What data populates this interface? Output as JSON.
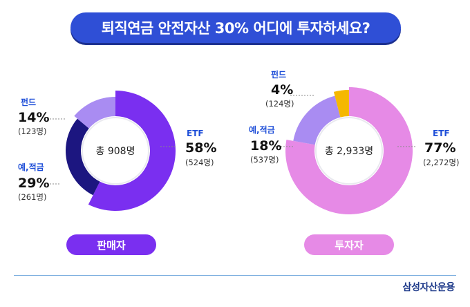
{
  "title": "퇴직연금 안전자산 30% 어디에 투자하세요?",
  "colors": {
    "title_bg": "#2f4fd6",
    "etf_sellers": "#7a2ff0",
    "deposit_sellers": "#1c1680",
    "fund_sellers": "#a98cf2",
    "etf_investors": "#e68ae6",
    "deposit_investors": "#a98cf2",
    "fund_investors": "#f5b800",
    "label_blue": "#1e4ed8"
  },
  "chart_data": [
    {
      "type": "pie",
      "donut": true,
      "center_label": "총 908명",
      "footer_label": "판매자",
      "series": [
        {
          "name": "ETF",
          "value": 58,
          "value_label": "58%",
          "count": "(524명)"
        },
        {
          "name": "예,적금",
          "value": 29,
          "value_label": "29%",
          "count": "(261명)"
        },
        {
          "name": "펀드",
          "value": 14,
          "value_label": "14%",
          "count": "(123명)"
        }
      ]
    },
    {
      "type": "pie",
      "donut": true,
      "center_label": "총 2,933명",
      "footer_label": "투자자",
      "series": [
        {
          "name": "ETF",
          "value": 77,
          "value_label": "77%",
          "count": "(2,272명)"
        },
        {
          "name": "예,적금",
          "value": 18,
          "value_label": "18%",
          "count": "(537명)"
        },
        {
          "name": "펀드",
          "value": 4,
          "value_label": "4%",
          "count": "(124명)"
        }
      ]
    }
  ],
  "brand": "삼성자산운용"
}
